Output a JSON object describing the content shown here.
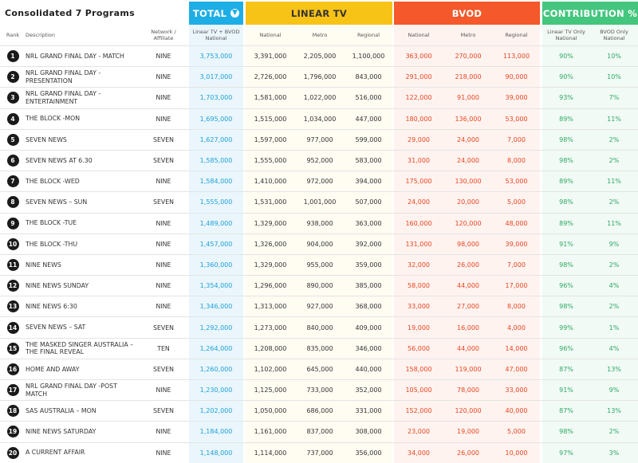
{
  "title": "Consolidated 7 Programs",
  "groups": {
    "total": "TOTAL",
    "linear": "LINEAR TV",
    "bvod": "BVOD",
    "contribution": "CONTRIBUTION %"
  },
  "total_icon": "info-circle-icon",
  "colors": {
    "total": "#1eaee6",
    "linear": "#f8c317",
    "bvod": "#f5582a",
    "contribution": "#44c67e"
  },
  "columns": {
    "rank": "Rank",
    "description": "Description",
    "network": "Network / Affiliate",
    "total": "Linear TV + BVOD National",
    "linear_national": "National",
    "linear_metro": "Metro",
    "linear_regional": "Regional",
    "bvod_national": "National",
    "bvod_metro": "Metro",
    "bvod_regional": "Regional",
    "contrib_linear": "Linear TV Only National",
    "contrib_bvod": "BVOD Only National"
  },
  "rows": [
    {
      "rank": "1",
      "desc": "NRL GRAND FINAL DAY - MATCH",
      "net": "NINE",
      "total": "3,753,000",
      "ln": "3,391,000",
      "lm": "2,205,000",
      "lr": "1,100,000",
      "bn": "363,000",
      "bm": "270,000",
      "br": "113,000",
      "pl": "90%",
      "pb": "10%"
    },
    {
      "rank": "2",
      "desc": "NRL GRAND FINAL DAY - PRESENTATION",
      "net": "NINE",
      "total": "3,017,000",
      "ln": "2,726,000",
      "lm": "1,796,000",
      "lr": "843,000",
      "bn": "291,000",
      "bm": "218,000",
      "br": "90,000",
      "pl": "90%",
      "pb": "10%"
    },
    {
      "rank": "3",
      "desc": "NRL GRAND FINAL DAY - ENTERTAINMENT",
      "net": "NINE",
      "total": "1,703,000",
      "ln": "1,581,000",
      "lm": "1,022,000",
      "lr": "516,000",
      "bn": "122,000",
      "bm": "91,000",
      "br": "39,000",
      "pl": "93%",
      "pb": "7%"
    },
    {
      "rank": "4",
      "desc": "THE BLOCK -MON",
      "net": "NINE",
      "total": "1,695,000",
      "ln": "1,515,000",
      "lm": "1,034,000",
      "lr": "447,000",
      "bn": "180,000",
      "bm": "136,000",
      "br": "53,000",
      "pl": "89%",
      "pb": "11%"
    },
    {
      "rank": "5",
      "desc": "SEVEN NEWS",
      "net": "SEVEN",
      "total": "1,627,000",
      "ln": "1,597,000",
      "lm": "977,000",
      "lr": "599,000",
      "bn": "29,000",
      "bm": "24,000",
      "br": "7,000",
      "pl": "98%",
      "pb": "2%"
    },
    {
      "rank": "6",
      "desc": "SEVEN NEWS AT 6.30",
      "net": "SEVEN",
      "total": "1,585,000",
      "ln": "1,555,000",
      "lm": "952,000",
      "lr": "583,000",
      "bn": "31,000",
      "bm": "24,000",
      "br": "8,000",
      "pl": "98%",
      "pb": "2%"
    },
    {
      "rank": "7",
      "desc": "THE BLOCK -WED",
      "net": "NINE",
      "total": "1,584,000",
      "ln": "1,410,000",
      "lm": "972,000",
      "lr": "394,000",
      "bn": "175,000",
      "bm": "130,000",
      "br": "53,000",
      "pl": "89%",
      "pb": "11%"
    },
    {
      "rank": "8",
      "desc": "SEVEN NEWS – SUN",
      "net": "SEVEN",
      "total": "1,555,000",
      "ln": "1,531,000",
      "lm": "1,001,000",
      "lr": "507,000",
      "bn": "24,000",
      "bm": "20,000",
      "br": "5,000",
      "pl": "98%",
      "pb": "2%"
    },
    {
      "rank": "9",
      "desc": "THE BLOCK -TUE",
      "net": "NINE",
      "total": "1,489,000",
      "ln": "1,329,000",
      "lm": "938,000",
      "lr": "363,000",
      "bn": "160,000",
      "bm": "120,000",
      "br": "48,000",
      "pl": "89%",
      "pb": "11%"
    },
    {
      "rank": "10",
      "desc": "THE BLOCK -THU",
      "net": "NINE",
      "total": "1,457,000",
      "ln": "1,326,000",
      "lm": "904,000",
      "lr": "392,000",
      "bn": "131,000",
      "bm": "98,000",
      "br": "39,000",
      "pl": "91%",
      "pb": "9%"
    },
    {
      "rank": "11",
      "desc": "NINE NEWS",
      "net": "NINE",
      "total": "1,360,000",
      "ln": "1,329,000",
      "lm": "955,000",
      "lr": "359,000",
      "bn": "32,000",
      "bm": "26,000",
      "br": "7,000",
      "pl": "98%",
      "pb": "2%"
    },
    {
      "rank": "12",
      "desc": "NINE NEWS SUNDAY",
      "net": "NINE",
      "total": "1,354,000",
      "ln": "1,296,000",
      "lm": "890,000",
      "lr": "385,000",
      "bn": "58,000",
      "bm": "44,000",
      "br": "17,000",
      "pl": "96%",
      "pb": "4%"
    },
    {
      "rank": "13",
      "desc": "NINE NEWS 6:30",
      "net": "NINE",
      "total": "1,346,000",
      "ln": "1,313,000",
      "lm": "927,000",
      "lr": "368,000",
      "bn": "33,000",
      "bm": "27,000",
      "br": "8,000",
      "pl": "98%",
      "pb": "2%"
    },
    {
      "rank": "14",
      "desc": "SEVEN NEWS – SAT",
      "net": "SEVEN",
      "total": "1,292,000",
      "ln": "1,273,000",
      "lm": "840,000",
      "lr": "409,000",
      "bn": "19,000",
      "bm": "16,000",
      "br": "4,000",
      "pl": "99%",
      "pb": "1%"
    },
    {
      "rank": "15",
      "desc": "THE MASKED SINGER AUSTRALIA – THE FINAL REVEAL",
      "net": "TEN",
      "total": "1,264,000",
      "ln": "1,208,000",
      "lm": "835,000",
      "lr": "346,000",
      "bn": "56,000",
      "bm": "44,000",
      "br": "14,000",
      "pl": "96%",
      "pb": "4%"
    },
    {
      "rank": "16",
      "desc": "HOME AND AWAY",
      "net": "SEVEN",
      "total": "1,260,000",
      "ln": "1,102,000",
      "lm": "645,000",
      "lr": "440,000",
      "bn": "158,000",
      "bm": "119,000",
      "br": "47,000",
      "pl": "87%",
      "pb": "13%"
    },
    {
      "rank": "17",
      "desc": "NRL GRAND FINAL DAY -POST MATCH",
      "net": "NINE",
      "total": "1,230,000",
      "ln": "1,125,000",
      "lm": "733,000",
      "lr": "352,000",
      "bn": "105,000",
      "bm": "78,000",
      "br": "33,000",
      "pl": "91%",
      "pb": "9%"
    },
    {
      "rank": "18",
      "desc": "SAS AUSTRALIA – MON",
      "net": "SEVEN",
      "total": "1,202,000",
      "ln": "1,050,000",
      "lm": "686,000",
      "lr": "331,000",
      "bn": "152,000",
      "bm": "120,000",
      "br": "40,000",
      "pl": "87%",
      "pb": "13%"
    },
    {
      "rank": "19",
      "desc": "NINE NEWS SATURDAY",
      "net": "NINE",
      "total": "1,184,000",
      "ln": "1,161,000",
      "lm": "837,000",
      "lr": "308,000",
      "bn": "23,000",
      "bm": "19,000",
      "br": "5,000",
      "pl": "98%",
      "pb": "2%"
    },
    {
      "rank": "20",
      "desc": "A CURRENT AFFAIR",
      "net": "NINE",
      "total": "1,148,000",
      "ln": "1,114,000",
      "lm": "737,000",
      "lr": "356,000",
      "bn": "34,000",
      "bm": "26,000",
      "br": "10,000",
      "pl": "97%",
      "pb": "3%"
    }
  ]
}
